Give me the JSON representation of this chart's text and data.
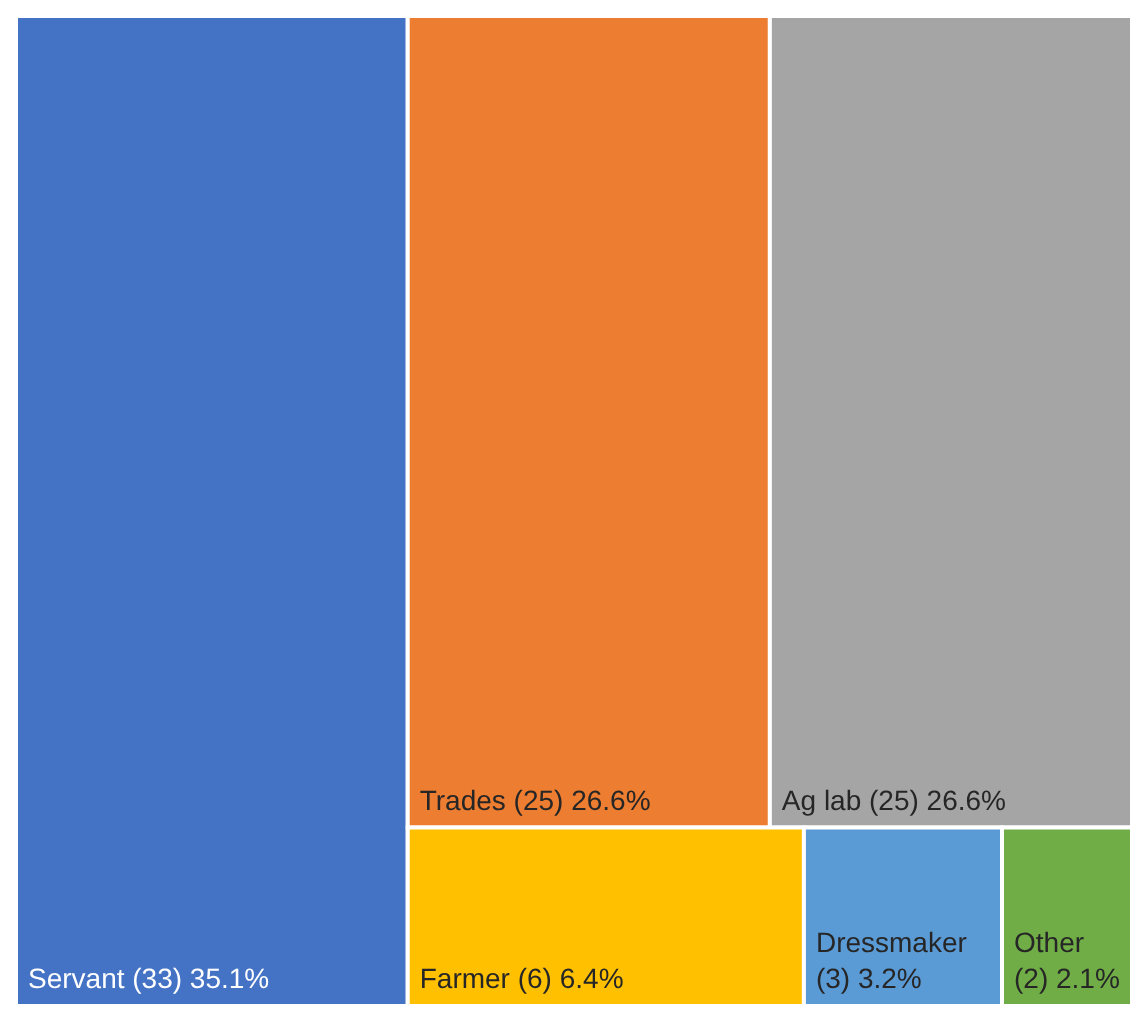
{
  "chart_data": {
    "type": "other",
    "categories": [
      "Servant (33)",
      "Trades (25)",
      "Ag lab (25)",
      "Farmer (6)",
      "Dressmaker (3)",
      "Other (2)"
    ],
    "values": [
      35.1,
      26.6,
      26.6,
      6.4,
      3.2,
      2.1
    ],
    "value_labels": [
      "35.1%",
      "26.6%",
      "26.6%",
      "6.4%",
      "3.2%",
      "2.1%"
    ],
    "colors": [
      "#4472c4",
      "#ed7d31",
      "#a5a5a5",
      "#ffc000",
      "#5b9bd5",
      "#70ad47"
    ]
  }
}
